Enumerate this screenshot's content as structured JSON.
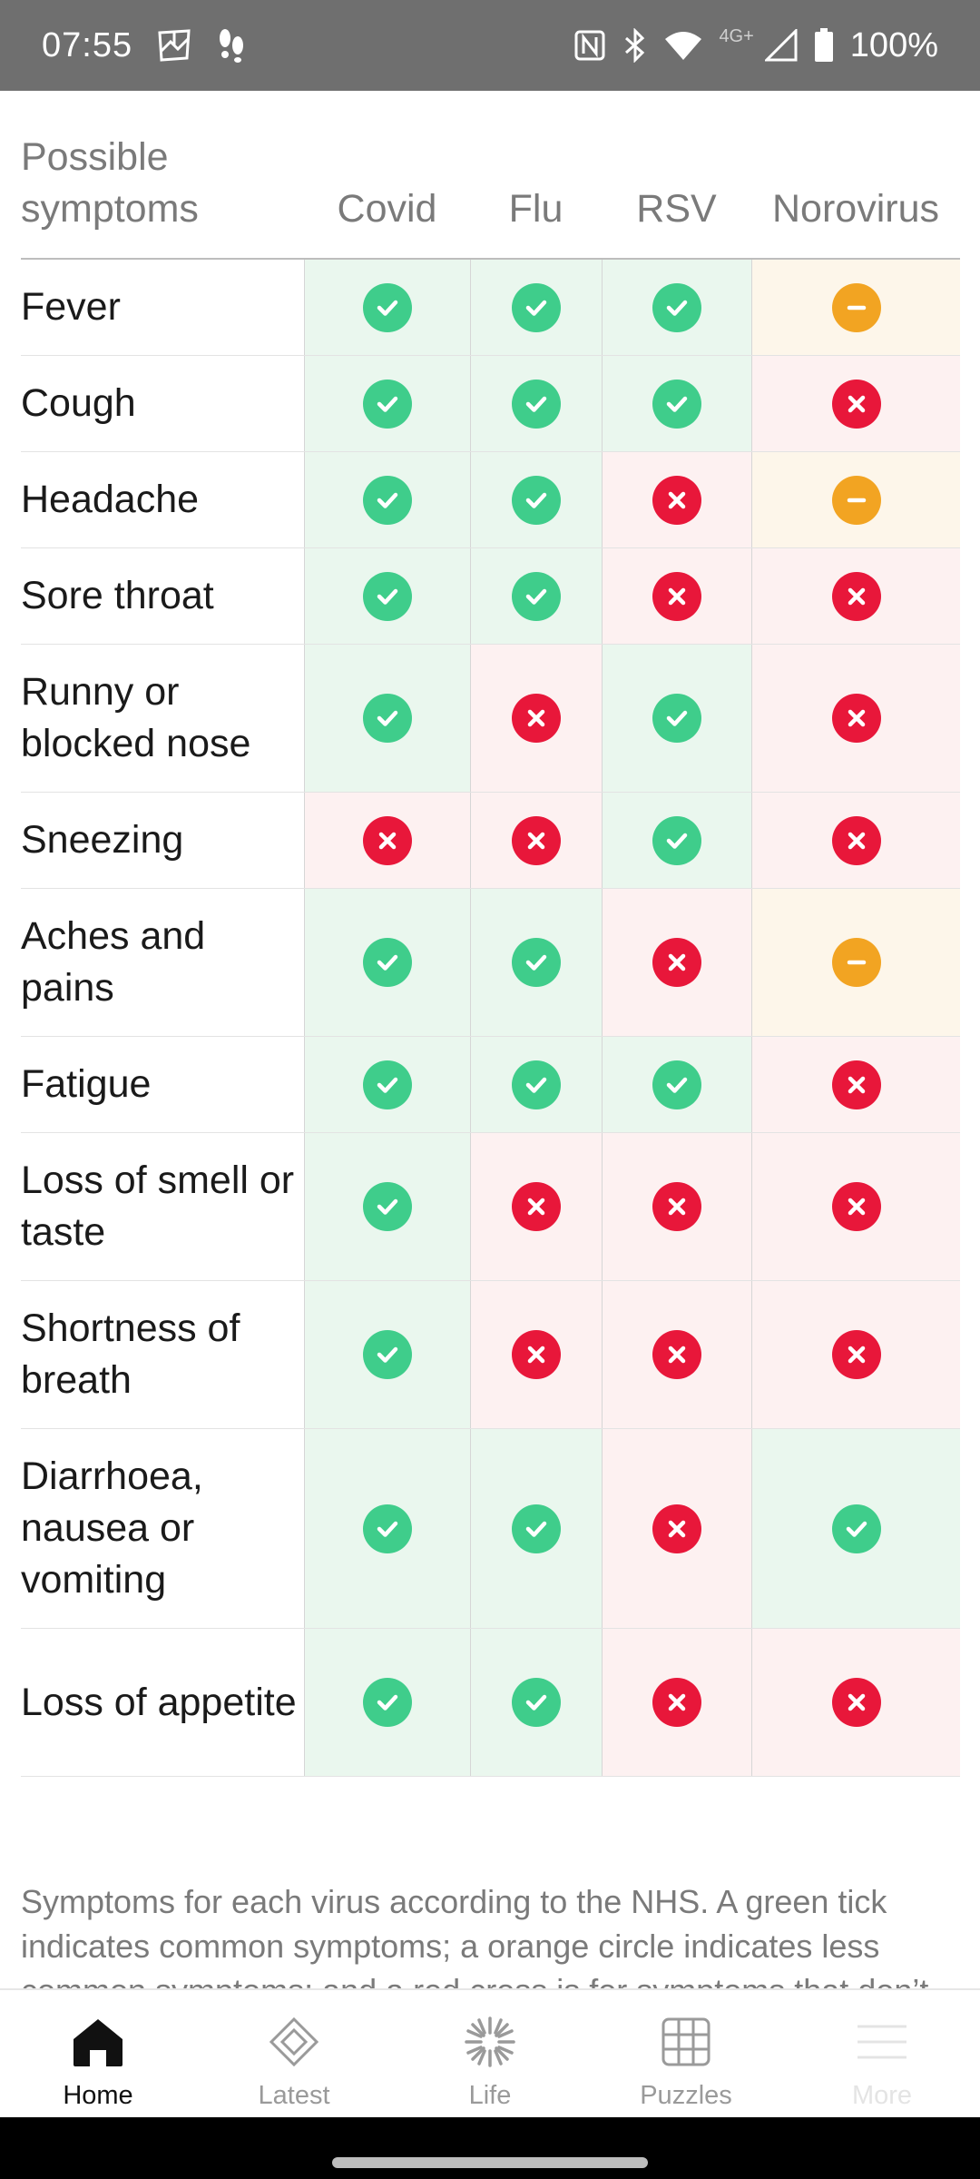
{
  "status_bar": {
    "time": "07:55",
    "network": "4G+",
    "battery": "100%"
  },
  "table": {
    "header_first": "Possible symptoms",
    "columns": [
      "Covid",
      "Flu",
      "RSV",
      "Norovirus"
    ],
    "rows": [
      {
        "label": "Fever",
        "values": [
          "yes",
          "yes",
          "yes",
          "some"
        ]
      },
      {
        "label": "Cough",
        "values": [
          "yes",
          "yes",
          "yes",
          "no"
        ]
      },
      {
        "label": "Headache",
        "values": [
          "yes",
          "yes",
          "no",
          "some"
        ]
      },
      {
        "label": "Sore throat",
        "values": [
          "yes",
          "yes",
          "no",
          "no"
        ]
      },
      {
        "label": "Runny or blocked nose",
        "values": [
          "yes",
          "no",
          "yes",
          "no"
        ]
      },
      {
        "label": "Sneezing",
        "values": [
          "no",
          "no",
          "yes",
          "no"
        ]
      },
      {
        "label": "Aches and pains",
        "values": [
          "yes",
          "yes",
          "no",
          "some"
        ]
      },
      {
        "label": "Fatigue",
        "values": [
          "yes",
          "yes",
          "yes",
          "no"
        ]
      },
      {
        "label": "Loss of smell or taste",
        "values": [
          "yes",
          "no",
          "no",
          "no"
        ]
      },
      {
        "label": "Shortness of breath",
        "values": [
          "yes",
          "no",
          "no",
          "no"
        ]
      },
      {
        "label": "Diarrhoea, nausea or vomiting",
        "values": [
          "yes",
          "yes",
          "no",
          "yes"
        ]
      },
      {
        "label": "Loss of appetite",
        "values": [
          "yes",
          "yes",
          "no",
          "no"
        ]
      }
    ],
    "caption": "Symptoms for each virus according to the NHS. A green tick indicates common symptoms; a orange circle indicates less common symptoms; and a red cross is for symptoms that don’t usually occur because of the virus. | Source: NHS"
  },
  "colors": {
    "yes": "#3fcd8b",
    "no": "#e8173a",
    "some": "#f2a422",
    "yes_bg": "#eaf7ee",
    "no_bg": "#fdf1f1",
    "some_bg": "#fdf6ea"
  },
  "bottom_nav": {
    "items": [
      {
        "label": "Home",
        "icon": "home-icon",
        "active": true
      },
      {
        "label": "Latest",
        "icon": "diamond-icon",
        "active": false
      },
      {
        "label": "Life",
        "icon": "sunburst-icon",
        "active": false
      },
      {
        "label": "Puzzles",
        "icon": "grid-icon",
        "active": false
      },
      {
        "label": "More",
        "icon": "menu-icon",
        "active": false
      }
    ]
  }
}
